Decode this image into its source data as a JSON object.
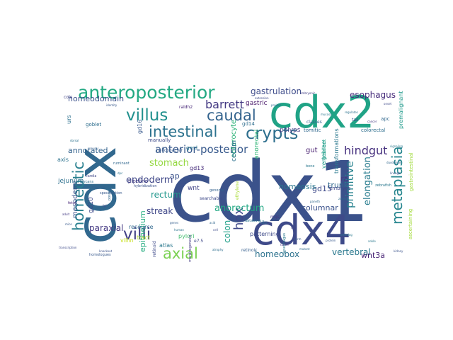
{
  "words": [
    {
      "text": "cdx1",
      "color": "#3b528b"
    },
    {
      "text": "cdx",
      "color": "#31688e"
    },
    {
      "text": "cdx2",
      "color": "#20a386"
    },
    {
      "text": "cdx4",
      "color": "#3e4a89"
    },
    {
      "text": "anteroposterior",
      "color": "#23a983"
    },
    {
      "text": "intestinal",
      "color": "#2c728e"
    },
    {
      "text": "villus",
      "color": "#21908d"
    },
    {
      "text": "caudal",
      "color": "#33638d"
    },
    {
      "text": "crypts",
      "color": "#2e6f8e"
    },
    {
      "text": "villi",
      "color": "#424086"
    },
    {
      "text": "axial",
      "color": "#7ad151"
    },
    {
      "text": "homeotic",
      "color": "#277f8e"
    },
    {
      "text": "metaplasia",
      "color": "#25858e"
    },
    {
      "text": "hox",
      "color": "#3f4889"
    },
    {
      "text": "barrett",
      "color": "#443a83"
    },
    {
      "text": "hindgut",
      "color": "#46307e"
    },
    {
      "text": "anterior-posterior",
      "color": "#38598c"
    },
    {
      "text": "gastrulation",
      "color": "#3e4c8a"
    },
    {
      "text": "homeodomain",
      "color": "#3b518b"
    },
    {
      "text": "esophagus",
      "color": "#472d7b"
    },
    {
      "text": "annotated",
      "color": "#33628d"
    },
    {
      "text": "stomach",
      "color": "#94d840"
    },
    {
      "text": "endoderm",
      "color": "#3f4788"
    },
    {
      "text": "rectum",
      "color": "#1f968b"
    },
    {
      "text": "streak",
      "color": "#3f4788"
    },
    {
      "text": "anorectum",
      "color": "#22a884"
    },
    {
      "text": "primitive",
      "color": "#26828e"
    },
    {
      "text": "elongation",
      "color": "#287c8e"
    },
    {
      "text": "homeobox",
      "color": "#2c728e"
    },
    {
      "text": "vertebral",
      "color": "#2a788e"
    },
    {
      "text": "paraxial",
      "color": "#443983"
    },
    {
      "text": "colon",
      "color": "#1fa088"
    },
    {
      "text": "epithelium",
      "color": "#26ad81"
    },
    {
      "text": "columnar",
      "color": "#3b528b"
    },
    {
      "text": "gd15",
      "color": "#3e4989"
    },
    {
      "text": "trunk",
      "color": "#31688e"
    },
    {
      "text": "ra",
      "color": "#453781"
    },
    {
      "text": "wnt3a",
      "color": "#482475"
    },
    {
      "text": "gut",
      "color": "#481f70"
    },
    {
      "text": "homeosis",
      "color": "#2a768e"
    },
    {
      "text": "ap",
      "color": "#3b528b"
    },
    {
      "text": "wnt",
      "color": "#414487"
    },
    {
      "text": "enterocyte",
      "color": "#31b57b"
    },
    {
      "text": "mesoderm",
      "color": "#3a548c"
    },
    {
      "text": "jejunum",
      "color": "#2d718e"
    },
    {
      "text": "gd10",
      "color": "#3e4a89"
    },
    {
      "text": "polyps",
      "color": "#433e85"
    },
    {
      "text": "gastric",
      "color": "#48186a"
    },
    {
      "text": "gd14",
      "color": "#2e6e8e"
    },
    {
      "text": "gd13",
      "color": "#472d7b"
    },
    {
      "text": "gd16",
      "color": "#38598c"
    },
    {
      "text": "resource",
      "color": "#31688e"
    },
    {
      "text": "tract",
      "color": "#b5de2b"
    },
    {
      "text": "atlas",
      "color": "#2a788e"
    },
    {
      "text": "villin",
      "color": "#c8e020"
    },
    {
      "text": "patterning",
      "color": "#3e4a89"
    },
    {
      "text": "cecum",
      "color": "#2c718e"
    },
    {
      "text": "pipeline",
      "color": "#433e85"
    },
    {
      "text": "vertebrae",
      "color": "#1e9b8a"
    },
    {
      "text": "transformations",
      "color": "#2a788e"
    },
    {
      "text": "gastrointestinal",
      "color": "#9fda3a"
    },
    {
      "text": "premalignant",
      "color": "#1f998a"
    },
    {
      "text": "ascertaining",
      "color": "#a2da37"
    },
    {
      "text": "colorectal",
      "color": "#2e6e8e"
    },
    {
      "text": "tomitic",
      "color": "#31688e"
    },
    {
      "text": "anorectal",
      "color": "#35b779"
    },
    {
      "text": "gradient",
      "color": "#1fa088"
    },
    {
      "text": "embryos",
      "color": "#3f4788"
    },
    {
      "text": "pylori",
      "color": "#44bf70"
    },
    {
      "text": "axis",
      "color": "#2c728e"
    },
    {
      "text": "manually",
      "color": "#3e4a89"
    },
    {
      "text": "helicobacter",
      "color": "#38598c"
    },
    {
      "text": "gerd",
      "color": "#2a788e"
    },
    {
      "text": "urs",
      "color": "#2c718e"
    },
    {
      "text": "goblet",
      "color": "#2e6e8e"
    },
    {
      "text": "raldh2",
      "color": "#482878"
    },
    {
      "text": "apc",
      "color": "#31688e"
    },
    {
      "text": "colo",
      "color": "#414487"
    },
    {
      "text": "classes",
      "color": "#32648e"
    },
    {
      "text": "tail",
      "color": "#3b528b"
    },
    {
      "text": "mgs",
      "color": "#443983"
    },
    {
      "text": "e7.5",
      "color": "#3f4889"
    },
    {
      "text": "nilu",
      "color": "#2e6f8e"
    },
    {
      "text": "retinoic",
      "color": "#355f8d"
    },
    {
      "text": "retinoid",
      "color": "#3e4a89"
    },
    {
      "text": "morphogenesis",
      "color": "#443a83"
    },
    {
      "text": "database",
      "color": "#2c728e"
    },
    {
      "text": "homologues",
      "color": "#38598c"
    },
    {
      "text": "oesophagus",
      "color": "#2a788e"
    },
    {
      "text": "ethylene",
      "color": "#a8db34"
    },
    {
      "text": "ruminant",
      "color": "#31688e"
    },
    {
      "text": "bone",
      "color": "#2a788e"
    },
    {
      "text": "searchable",
      "color": "#3e4a89"
    },
    {
      "text": "genome",
      "color": "#33628d"
    },
    {
      "text": "hybridization",
      "color": "#3b528b"
    },
    {
      "text": "fetal",
      "color": "#482878"
    },
    {
      "text": "cardia",
      "color": "#3f4788"
    },
    {
      "text": "zebrafish",
      "color": "#2a788e"
    },
    {
      "text": "specification",
      "color": "#38598c"
    },
    {
      "text": "posterior",
      "color": "#31688e"
    },
    {
      "text": "extension",
      "color": "#3e4a89"
    },
    {
      "text": "embryonic",
      "color": "#433e85"
    },
    {
      "text": "regulates",
      "color": "#2c728e"
    },
    {
      "text": "identity",
      "color": "#38598c"
    },
    {
      "text": "project",
      "color": "#31688e"
    },
    {
      "text": "mucosa",
      "color": "#2a788e"
    },
    {
      "text": "onset",
      "color": "#3e4a89"
    },
    {
      "text": "cancer",
      "color": "#443983"
    },
    {
      "text": "glycans",
      "color": "#2e6e8e"
    },
    {
      "text": "forebrain",
      "color": "#355f8d"
    },
    {
      "text": "lineage",
      "color": "#3b528b"
    },
    {
      "text": "duodenum",
      "color": "#31688e"
    },
    {
      "text": "signaling",
      "color": "#2a788e"
    },
    {
      "text": "adult",
      "color": "#443a83"
    },
    {
      "text": "mice",
      "color": "#38598c"
    },
    {
      "text": "fgf",
      "color": "#3e4a89"
    },
    {
      "text": "dpc",
      "color": "#2c728e"
    },
    {
      "text": "paneth",
      "color": "#31688e"
    },
    {
      "text": "zones",
      "color": "#2e6e8e"
    },
    {
      "text": "kidney",
      "color": "#3b528b"
    },
    {
      "text": "ankle",
      "color": "#2a788e"
    },
    {
      "text": "loss",
      "color": "#414487"
    },
    {
      "text": "germ",
      "color": "#38598c"
    },
    {
      "text": "acid",
      "color": "#31688e"
    },
    {
      "text": "cell",
      "color": "#3e4a89"
    },
    {
      "text": "human",
      "color": "#2c728e"
    },
    {
      "text": "genes",
      "color": "#355f8d"
    },
    {
      "text": "knockout",
      "color": "#3b528b"
    },
    {
      "text": "atrophy",
      "color": "#2e6e8e"
    },
    {
      "text": "tumor",
      "color": "#443983"
    },
    {
      "text": "mutant",
      "color": "#31688e"
    },
    {
      "text": "protein",
      "color": "#38598c"
    },
    {
      "text": "ortholog",
      "color": "#2a788e"
    },
    {
      "text": "transcription",
      "color": "#3e4a89"
    },
    {
      "text": "dorsal",
      "color": "#2c728e"
    },
    {
      "text": "neural",
      "color": "#355f8d"
    }
  ]
}
